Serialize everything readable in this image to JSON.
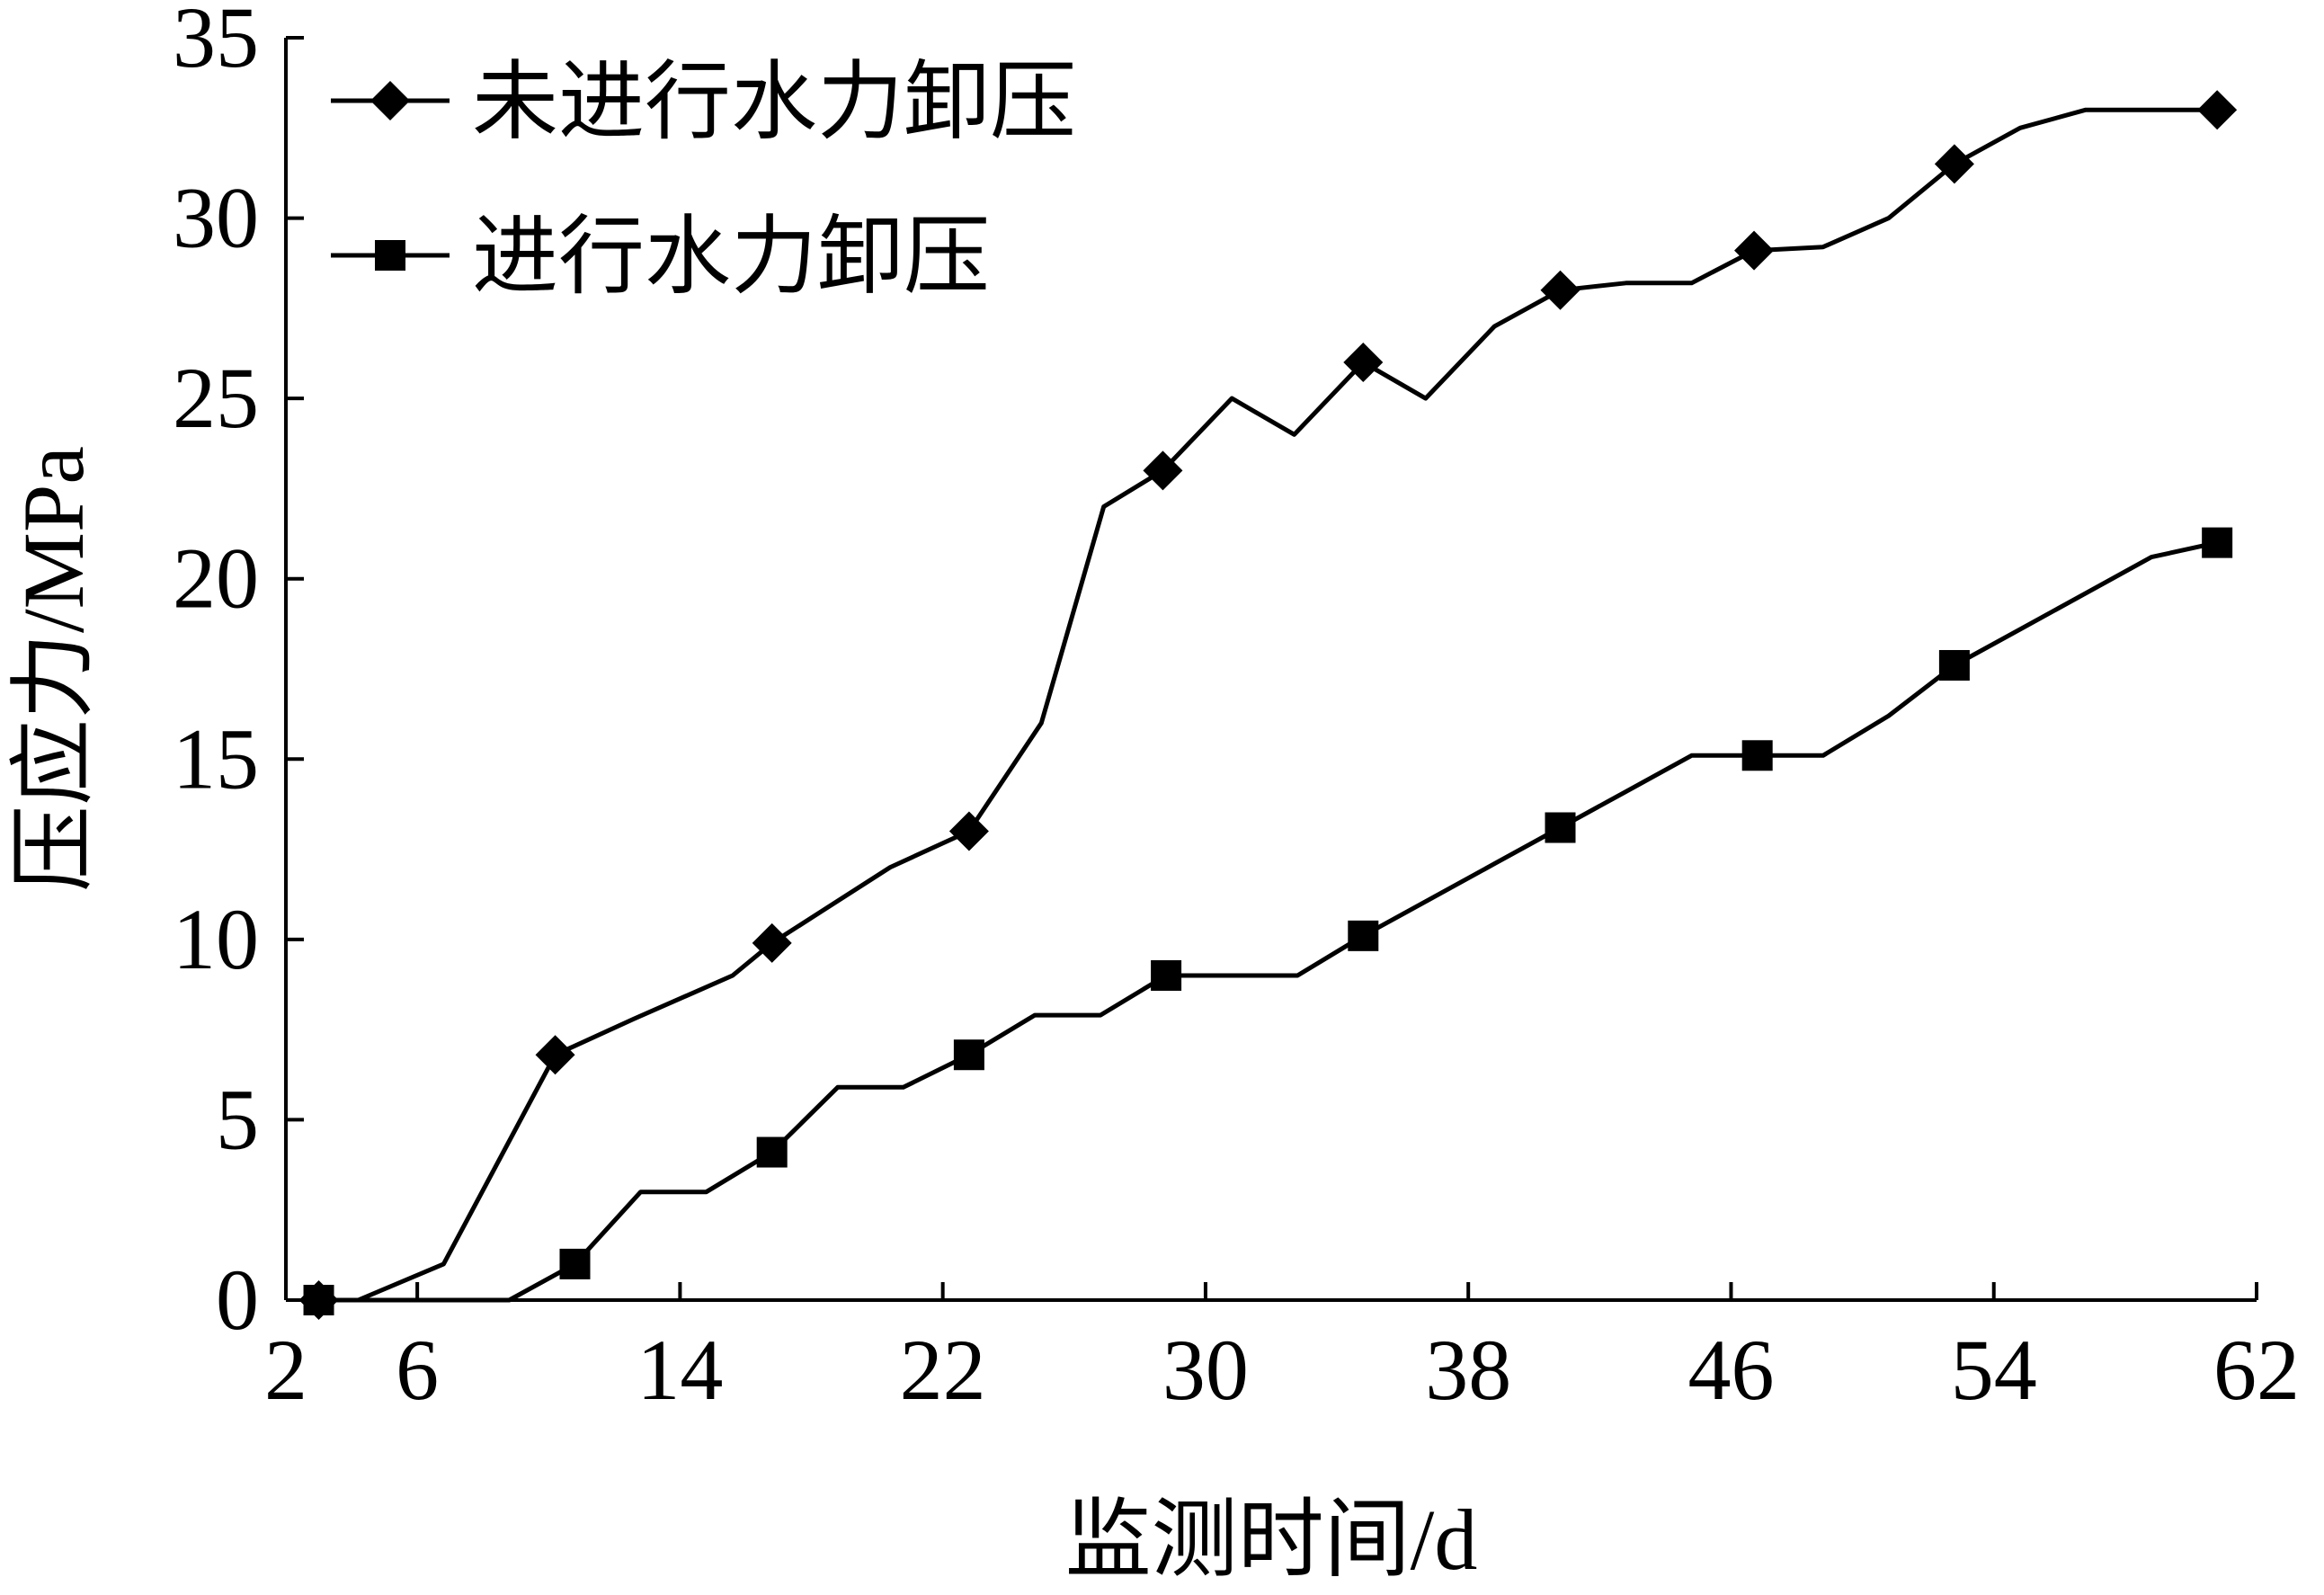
{
  "chart_data": {
    "type": "line",
    "title": "",
    "xlabel": "监测时间/d",
    "ylabel": "压应力/MPa",
    "xlim": [
      2,
      62
    ],
    "ylim": [
      0,
      35
    ],
    "xticks": [
      2,
      6,
      14,
      22,
      30,
      38,
      46,
      54,
      62
    ],
    "yticks": [
      0,
      5,
      10,
      15,
      20,
      25,
      30,
      35
    ],
    "grid": false,
    "legend_position": "top-left",
    "series": [
      {
        "name": "未进行水力卸压",
        "marker": "diamond",
        "color": "#000000",
        "x": [
          3,
          4.2,
          6.8,
          10.2,
          12.6,
          15.6,
          16.8,
          20.4,
          22.8,
          25,
          26.9,
          28.7,
          30.8,
          32.7,
          34.8,
          36.7,
          38.8,
          40.8,
          42.8,
          44.8,
          46.7,
          48.8,
          50.8,
          52.8,
          54.8,
          56.8,
          58.8,
          60.8
        ],
        "y": [
          0,
          0,
          1,
          6.8,
          7.8,
          9,
          9.9,
          12,
          13,
          16,
          22,
          23,
          25,
          24,
          26,
          25,
          27,
          28,
          28.2,
          28.2,
          29.1,
          29.2,
          30,
          31.5,
          32.5,
          33,
          33,
          33
        ],
        "marked_indices": [
          0,
          3,
          6,
          8,
          11,
          14,
          17,
          20,
          23,
          27
        ]
      },
      {
        "name": "进行水力卸压",
        "marker": "square",
        "color": "#000000",
        "x": [
          3,
          4.2,
          6.8,
          8.8,
          10.8,
          12.8,
          14.8,
          16.8,
          18.8,
          20.8,
          22.8,
          24.8,
          26.8,
          28.8,
          30.8,
          32.8,
          34.8,
          36.8,
          38.8,
          40.8,
          42.8,
          44.8,
          46.8,
          48.8,
          50.8,
          52.8,
          54.8,
          56.8,
          58.8,
          60.8
        ],
        "y": [
          0,
          0,
          0,
          0,
          1,
          3,
          3,
          4.1,
          5.9,
          5.9,
          6.8,
          7.9,
          7.9,
          9,
          9,
          9,
          10.1,
          11.1,
          12.1,
          13.1,
          14.1,
          15.1,
          15.1,
          15.1,
          16.2,
          17.6,
          18.6,
          19.6,
          20.6,
          21
        ]
      }
    ]
  }
}
